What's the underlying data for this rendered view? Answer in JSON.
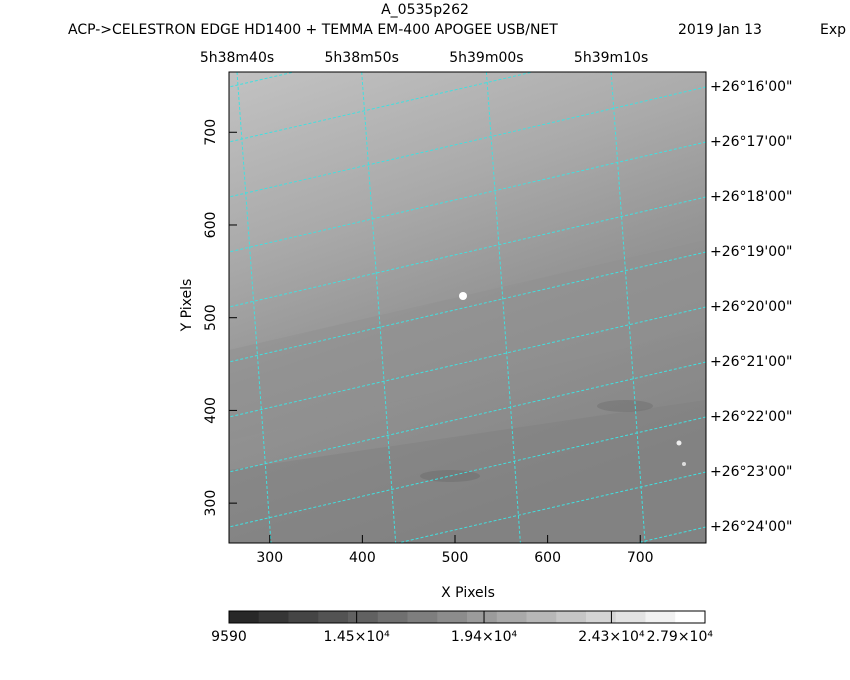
{
  "chart_data": {
    "type": "image",
    "title": "A_0535p262",
    "subtitle": "ACP->CELESTRON EDGE HD1400 + TEMMA EM-400 APOGEE USB/NET",
    "date": "2019 Jan 13",
    "exposure": "Exp",
    "x_label": "X Pixels",
    "y_label": "Y Pixels",
    "xlim": [
      256,
      771
    ],
    "xticks": [
      300,
      400,
      500,
      600,
      700
    ],
    "ylim": [
      257,
      765
    ],
    "yticks": [
      300,
      400,
      500,
      600,
      700
    ],
    "ra_ticks": [
      "5h38m40s",
      "5h38m50s",
      "5h39m00s",
      "5h39m10s"
    ],
    "dec_ticks": [
      "+26°16'00\"",
      "+26°17'00\"",
      "+26°18'00\"",
      "+26°19'00\"",
      "+26°20'00\"",
      "+26°21'00\"",
      "+26°22'00\"",
      "+26°23'00\"",
      "+26°24'00\""
    ],
    "grid_color": "#40e0e0",
    "colorbar": {
      "lim": [
        9590,
        27900
      ],
      "ticks": [
        9590,
        {
          "value": 14500,
          "label": "1.45×10⁴"
        },
        {
          "value": 19400,
          "label": "1.94×10⁴"
        },
        {
          "value": 24300,
          "label": "2.43×10⁴"
        },
        {
          "value": 27900,
          "label": "2.79×10⁴"
        }
      ]
    }
  }
}
